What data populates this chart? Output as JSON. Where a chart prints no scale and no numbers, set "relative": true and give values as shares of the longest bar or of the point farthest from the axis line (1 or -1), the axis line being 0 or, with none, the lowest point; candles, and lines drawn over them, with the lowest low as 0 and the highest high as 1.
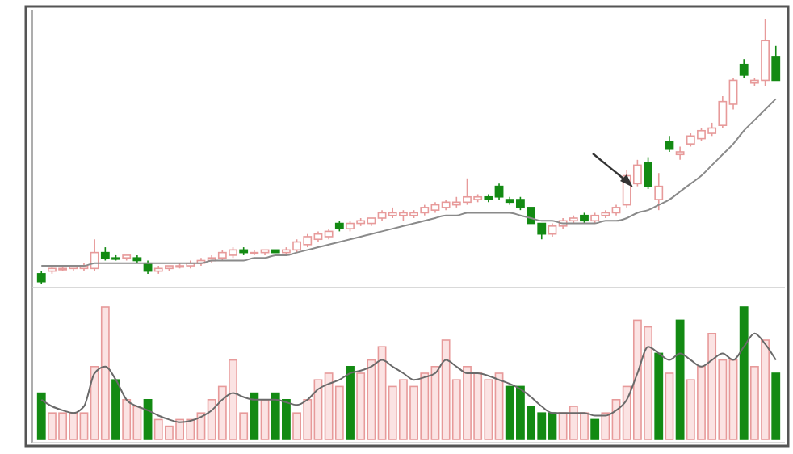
{
  "chart_data": [
    {
      "type": "candlestick",
      "relative": true,
      "categories": [
        null,
        null,
        null,
        null,
        null,
        null,
        null,
        null,
        null,
        null,
        null,
        null,
        null,
        null,
        null,
        null,
        null,
        null,
        null,
        null,
        null,
        null,
        null,
        null,
        null,
        null,
        null,
        null,
        null,
        null,
        null,
        null,
        null,
        null,
        null,
        null,
        null,
        null,
        null,
        null,
        null,
        null,
        null,
        null,
        null,
        null,
        null,
        null,
        null,
        null,
        null,
        null,
        null,
        null,
        null,
        null,
        null,
        null,
        null,
        null,
        null,
        null,
        null,
        null,
        null,
        null,
        null,
        null,
        null,
        null
      ],
      "ohlc": [
        [
          0.04,
          0.05,
          0,
          0.01
        ],
        [
          0.05,
          0.07,
          0.04,
          0.06
        ],
        [
          0.06,
          0.07,
          0.05,
          0.06
        ],
        [
          0.06,
          0.07,
          0.05,
          0.07
        ],
        [
          0.06,
          0.08,
          0.05,
          0.07
        ],
        [
          0.06,
          0.17,
          0.05,
          0.12
        ],
        [
          0.12,
          0.14,
          0.09,
          0.1
        ],
        [
          0.1,
          0.11,
          0.09,
          0.1
        ],
        [
          0.1,
          0.11,
          0.09,
          0.11
        ],
        [
          0.1,
          0.11,
          0.08,
          0.09
        ],
        [
          0.08,
          0.09,
          0.04,
          0.05
        ],
        [
          0.05,
          0.07,
          0.04,
          0.06
        ],
        [
          0.06,
          0.07,
          0.05,
          0.07
        ],
        [
          0.07,
          0.08,
          0.06,
          0.07
        ],
        [
          0.07,
          0.09,
          0.06,
          0.08
        ],
        [
          0.08,
          0.1,
          0.07,
          0.09
        ],
        [
          0.09,
          0.11,
          0.08,
          0.1
        ],
        [
          0.1,
          0.13,
          0.09,
          0.12
        ],
        [
          0.11,
          0.14,
          0.1,
          0.13
        ],
        [
          0.13,
          0.14,
          0.11,
          0.12
        ],
        [
          0.12,
          0.13,
          0.11,
          0.12
        ],
        [
          0.12,
          0.13,
          0.11,
          0.13
        ],
        [
          0.13,
          0.13,
          0.12,
          0.12
        ],
        [
          0.12,
          0.14,
          0.11,
          0.13
        ],
        [
          0.13,
          0.17,
          0.12,
          0.16
        ],
        [
          0.15,
          0.19,
          0.14,
          0.18
        ],
        [
          0.17,
          0.2,
          0.16,
          0.19
        ],
        [
          0.18,
          0.21,
          0.17,
          0.2
        ],
        [
          0.23,
          0.24,
          0.2,
          0.21
        ],
        [
          0.21,
          0.24,
          0.2,
          0.23
        ],
        [
          0.23,
          0.25,
          0.22,
          0.24
        ],
        [
          0.23,
          0.25,
          0.22,
          0.25
        ],
        [
          0.25,
          0.28,
          0.24,
          0.27
        ],
        [
          0.26,
          0.29,
          0.25,
          0.27
        ],
        [
          0.26,
          0.28,
          0.24,
          0.27
        ],
        [
          0.26,
          0.28,
          0.25,
          0.27
        ],
        [
          0.27,
          0.3,
          0.26,
          0.29
        ],
        [
          0.28,
          0.31,
          0.27,
          0.3
        ],
        [
          0.29,
          0.32,
          0.28,
          0.31
        ],
        [
          0.3,
          0.33,
          0.29,
          0.31
        ],
        [
          0.31,
          0.4,
          0.3,
          0.33
        ],
        [
          0.32,
          0.34,
          0.31,
          0.33
        ],
        [
          0.33,
          0.34,
          0.31,
          0.32
        ],
        [
          0.37,
          0.38,
          0.32,
          0.33
        ],
        [
          0.32,
          0.33,
          0.3,
          0.31
        ],
        [
          0.32,
          0.33,
          0.28,
          0.29
        ],
        [
          0.29,
          0.29,
          0.23,
          0.23
        ],
        [
          0.23,
          0.23,
          0.17,
          0.19
        ],
        [
          0.19,
          0.23,
          0.18,
          0.22
        ],
        [
          0.22,
          0.25,
          0.21,
          0.24
        ],
        [
          0.24,
          0.26,
          0.23,
          0.25
        ],
        [
          0.26,
          0.27,
          0.23,
          0.24
        ],
        [
          0.24,
          0.27,
          0.23,
          0.26
        ],
        [
          0.26,
          0.28,
          0.25,
          0.27
        ],
        [
          0.27,
          0.3,
          0.26,
          0.29
        ],
        [
          0.3,
          0.43,
          0.29,
          0.41
        ],
        [
          0.38,
          0.47,
          0.37,
          0.45
        ],
        [
          0.46,
          0.48,
          0.36,
          0.37
        ],
        [
          0.32,
          0.42,
          0.28,
          0.37
        ],
        [
          0.54,
          0.56,
          0.5,
          0.51
        ],
        [
          0.49,
          0.52,
          0.47,
          0.5
        ],
        [
          0.53,
          0.57,
          0.52,
          0.56
        ],
        [
          0.55,
          0.59,
          0.54,
          0.58
        ],
        [
          0.57,
          0.61,
          0.56,
          0.59
        ],
        [
          0.6,
          0.71,
          0.59,
          0.69
        ],
        [
          0.68,
          0.78,
          0.66,
          0.77
        ],
        [
          0.83,
          0.85,
          0.78,
          0.79
        ],
        [
          0.76,
          0.78,
          0.75,
          0.77
        ],
        [
          0.77,
          1.0,
          0.75,
          0.92
        ],
        [
          0.86,
          0.9,
          0.77,
          0.77
        ]
      ],
      "colors": [
        "#138a13",
        "#e79a9a",
        "#e79a9a",
        "#e79a9a",
        "#e79a9a",
        "#e79a9a",
        "#138a13",
        "#138a13",
        "#e79a9a",
        "#138a13",
        "#138a13",
        "#e79a9a",
        "#e79a9a",
        "#e79a9a",
        "#e79a9a",
        "#e79a9a",
        "#e79a9a",
        "#e79a9a",
        "#e79a9a",
        "#138a13",
        "#e79a9a",
        "#e79a9a",
        "#138a13",
        "#e79a9a",
        "#e79a9a",
        "#e79a9a",
        "#e79a9a",
        "#e79a9a",
        "#138a13",
        "#e79a9a",
        "#e79a9a",
        "#e79a9a",
        "#e79a9a",
        "#e79a9a",
        "#e79a9a",
        "#e79a9a",
        "#e79a9a",
        "#e79a9a",
        "#e79a9a",
        "#e79a9a",
        "#e79a9a",
        "#e79a9a",
        "#138a13",
        "#138a13",
        "#138a13",
        "#138a13",
        "#138a13",
        "#138a13",
        "#e79a9a",
        "#e79a9a",
        "#e79a9a",
        "#138a13",
        "#e79a9a",
        "#e79a9a",
        "#e79a9a",
        "#e79a9a",
        "#e79a9a",
        "#138a13",
        "#e79a9a",
        "#138a13",
        "#e79a9a",
        "#e79a9a",
        "#e79a9a",
        "#e79a9a",
        "#e79a9a",
        "#e79a9a",
        "#138a13",
        "#e79a9a",
        "#e79a9a",
        "#138a13"
      ],
      "series": [
        {
          "type": "line",
          "color": "#8a8a8a",
          "values": [
            0.07,
            0.07,
            0.07,
            0.07,
            0.07,
            0.08,
            0.08,
            0.08,
            0.08,
            0.08,
            0.08,
            0.08,
            0.08,
            0.08,
            0.08,
            0.08,
            0.09,
            0.09,
            0.09,
            0.09,
            0.1,
            0.1,
            0.11,
            0.11,
            0.12,
            0.13,
            0.14,
            0.15,
            0.16,
            0.17,
            0.18,
            0.19,
            0.2,
            0.21,
            0.22,
            0.23,
            0.24,
            0.25,
            0.26,
            0.26,
            0.27,
            0.27,
            0.27,
            0.27,
            0.27,
            0.26,
            0.25,
            0.24,
            0.24,
            0.23,
            0.23,
            0.23,
            0.23,
            0.24,
            0.24,
            0.25,
            0.27,
            0.28,
            0.3,
            0.32,
            0.35,
            0.38,
            0.41,
            0.45,
            0.49,
            0.53,
            0.58,
            0.62,
            0.66,
            0.7
          ]
        }
      ]
    },
    {
      "type": "bar",
      "relative": true,
      "categories": [
        null,
        null,
        null,
        null,
        null,
        null,
        null,
        null,
        null,
        null,
        null,
        null,
        null,
        null,
        null,
        null,
        null,
        null,
        null,
        null,
        null,
        null,
        null,
        null,
        null,
        null,
        null,
        null,
        null,
        null,
        null,
        null,
        null,
        null,
        null,
        null,
        null,
        null,
        null,
        null,
        null,
        null,
        null,
        null,
        null,
        null,
        null,
        null,
        null,
        null,
        null,
        null,
        null,
        null,
        null,
        null,
        null,
        null,
        null,
        null,
        null,
        null,
        null,
        null,
        null,
        null,
        null,
        null,
        null,
        null
      ],
      "series": [
        {
          "type": "bar",
          "colors": [
            "#138a13",
            "#e79a9a",
            "#e79a9a",
            "#e79a9a",
            "#e79a9a",
            "#e79a9a",
            "#e79a9a",
            "#138a13",
            "#e79a9a",
            "#e79a9a",
            "#138a13",
            "#e79a9a",
            "#e79a9a",
            "#e79a9a",
            "#e79a9a",
            "#e79a9a",
            "#e79a9a",
            "#e79a9a",
            "#e79a9a",
            "#e79a9a",
            "#138a13",
            "#e79a9a",
            "#138a13",
            "#138a13",
            "#e79a9a",
            "#e79a9a",
            "#e79a9a",
            "#e79a9a",
            "#e79a9a",
            "#138a13",
            "#e79a9a",
            "#e79a9a",
            "#e79a9a",
            "#e79a9a",
            "#e79a9a",
            "#e79a9a",
            "#e79a9a",
            "#e79a9a",
            "#e79a9a",
            "#e79a9a",
            "#e79a9a",
            "#e79a9a",
            "#e79a9a",
            "#e79a9a",
            "#138a13",
            "#138a13",
            "#138a13",
            "#138a13",
            "#138a13",
            "#e79a9a",
            "#e79a9a",
            "#e79a9a",
            "#138a13",
            "#e79a9a",
            "#e79a9a",
            "#e79a9a",
            "#e79a9a",
            "#e79a9a",
            "#138a13",
            "#e79a9a",
            "#138a13",
            "#e79a9a",
            "#e79a9a",
            "#e79a9a",
            "#e79a9a",
            "#e79a9a",
            "#138a13",
            "#e79a9a",
            "#e79a9a",
            "#138a13"
          ],
          "values": [
            0.35,
            0.2,
            0.2,
            0.2,
            0.2,
            0.55,
            1.0,
            0.45,
            0.3,
            0.25,
            0.3,
            0.15,
            0.1,
            0.15,
            0.15,
            0.2,
            0.3,
            0.4,
            0.6,
            0.2,
            0.35,
            0.3,
            0.35,
            0.3,
            0.2,
            0.3,
            0.45,
            0.5,
            0.4,
            0.55,
            0.5,
            0.6,
            0.7,
            0.4,
            0.45,
            0.4,
            0.5,
            0.55,
            0.75,
            0.45,
            0.55,
            0.5,
            0.45,
            0.5,
            0.4,
            0.4,
            0.25,
            0.2,
            0.2,
            0.2,
            0.25,
            0.2,
            0.15,
            0.2,
            0.3,
            0.4,
            0.9,
            0.85,
            0.65,
            0.5,
            0.9,
            0.45,
            0.55,
            0.8,
            0.6,
            0.6,
            1.0,
            0.55,
            0.75,
            0.5
          ]
        },
        {
          "type": "line",
          "color": "#6a6a6a",
          "values": [
            0.3,
            0.25,
            0.22,
            0.2,
            0.25,
            0.5,
            0.55,
            0.45,
            0.3,
            0.25,
            0.22,
            0.18,
            0.15,
            0.13,
            0.14,
            0.17,
            0.22,
            0.3,
            0.35,
            0.32,
            0.3,
            0.3,
            0.3,
            0.28,
            0.26,
            0.3,
            0.38,
            0.42,
            0.45,
            0.5,
            0.52,
            0.55,
            0.6,
            0.55,
            0.5,
            0.45,
            0.47,
            0.5,
            0.6,
            0.55,
            0.5,
            0.5,
            0.48,
            0.45,
            0.42,
            0.38,
            0.32,
            0.25,
            0.2,
            0.2,
            0.2,
            0.2,
            0.18,
            0.18,
            0.22,
            0.3,
            0.5,
            0.7,
            0.65,
            0.6,
            0.65,
            0.6,
            0.55,
            0.6,
            0.65,
            0.6,
            0.7,
            0.8,
            0.72,
            0.6
          ]
        }
      ]
    }
  ]
}
